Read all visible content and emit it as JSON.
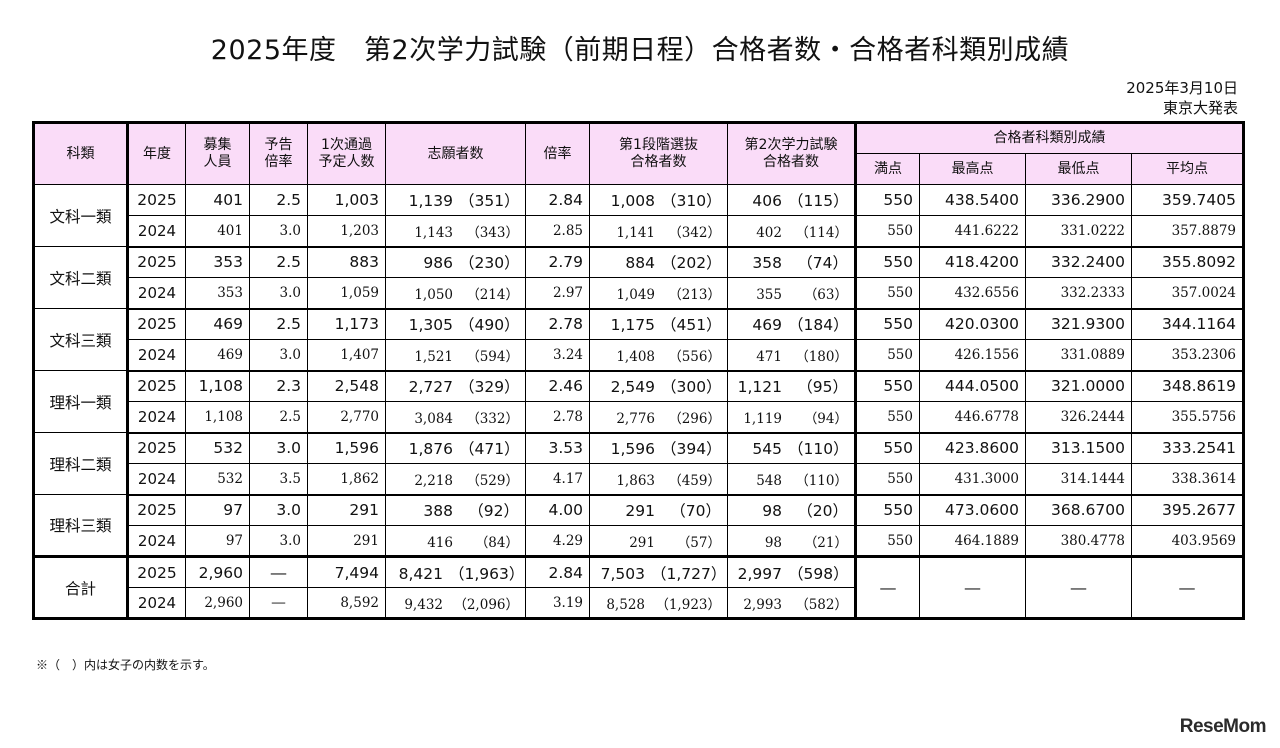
{
  "title": "2025年度　第2次学力試験（前期日程）合格者数・合格者科類別成績",
  "date": "2025年3月10日",
  "publisher": "東京大発表",
  "headers": {
    "category": "科類",
    "year": "年度",
    "recruit": "募集\n人員",
    "forecast_ratio": "予告\n倍率",
    "first_pass_plan": "1次通過\n予定人数",
    "applicants": "志願者数",
    "ratio": "倍率",
    "stage1_pass": "第1段階選抜\n合格者数",
    "stage2_pass": "第2次学力試験\n合格者数",
    "score_group": "合格者科類別成績",
    "full": "満点",
    "max": "最高点",
    "min": "最低点",
    "avg": "平均点"
  },
  "groups": [
    {
      "category": "文科一類",
      "rows": [
        {
          "year": "2025",
          "recruit": "401",
          "forecast": "2.5",
          "plan": "1,003",
          "app": "1,139",
          "app_f": "（351）",
          "ratio": "2.84",
          "s1": "1,008",
          "s1_f": "（310）",
          "s2": "406",
          "s2_f": "（115）",
          "full": "550",
          "max": "438.5400",
          "min": "336.2900",
          "avg": "359.7405"
        },
        {
          "year": "2024",
          "recruit": "401",
          "forecast": "3.0",
          "plan": "1,203",
          "app": "1,143",
          "app_f": "（343）",
          "ratio": "2.85",
          "s1": "1,141",
          "s1_f": "（342）",
          "s2": "402",
          "s2_f": "（114）",
          "full": "550",
          "max": "441.6222",
          "min": "331.0222",
          "avg": "357.8879"
        }
      ]
    },
    {
      "category": "文科二類",
      "rows": [
        {
          "year": "2025",
          "recruit": "353",
          "forecast": "2.5",
          "plan": "883",
          "app": "986",
          "app_f": "（230）",
          "ratio": "2.79",
          "s1": "884",
          "s1_f": "（202）",
          "s2": "358",
          "s2_f": "（74）",
          "full": "550",
          "max": "418.4200",
          "min": "332.2400",
          "avg": "355.8092"
        },
        {
          "year": "2024",
          "recruit": "353",
          "forecast": "3.0",
          "plan": "1,059",
          "app": "1,050",
          "app_f": "（214）",
          "ratio": "2.97",
          "s1": "1,049",
          "s1_f": "（213）",
          "s2": "355",
          "s2_f": "（63）",
          "full": "550",
          "max": "432.6556",
          "min": "332.2333",
          "avg": "357.0024"
        }
      ]
    },
    {
      "category": "文科三類",
      "rows": [
        {
          "year": "2025",
          "recruit": "469",
          "forecast": "2.5",
          "plan": "1,173",
          "app": "1,305",
          "app_f": "（490）",
          "ratio": "2.78",
          "s1": "1,175",
          "s1_f": "（451）",
          "s2": "469",
          "s2_f": "（184）",
          "full": "550",
          "max": "420.0300",
          "min": "321.9300",
          "avg": "344.1164"
        },
        {
          "year": "2024",
          "recruit": "469",
          "forecast": "3.0",
          "plan": "1,407",
          "app": "1,521",
          "app_f": "（594）",
          "ratio": "3.24",
          "s1": "1,408",
          "s1_f": "（556）",
          "s2": "471",
          "s2_f": "（180）",
          "full": "550",
          "max": "426.1556",
          "min": "331.0889",
          "avg": "353.2306"
        }
      ]
    },
    {
      "category": "理科一類",
      "rows": [
        {
          "year": "2025",
          "recruit": "1,108",
          "forecast": "2.3",
          "plan": "2,548",
          "app": "2,727",
          "app_f": "（329）",
          "ratio": "2.46",
          "s1": "2,549",
          "s1_f": "（300）",
          "s2": "1,121",
          "s2_f": "（95）",
          "full": "550",
          "max": "444.0500",
          "min": "321.0000",
          "avg": "348.8619"
        },
        {
          "year": "2024",
          "recruit": "1,108",
          "forecast": "2.5",
          "plan": "2,770",
          "app": "3,084",
          "app_f": "（332）",
          "ratio": "2.78",
          "s1": "2,776",
          "s1_f": "（296）",
          "s2": "1,119",
          "s2_f": "（94）",
          "full": "550",
          "max": "446.6778",
          "min": "326.2444",
          "avg": "355.5756"
        }
      ]
    },
    {
      "category": "理科二類",
      "rows": [
        {
          "year": "2025",
          "recruit": "532",
          "forecast": "3.0",
          "plan": "1,596",
          "app": "1,876",
          "app_f": "（471）",
          "ratio": "3.53",
          "s1": "1,596",
          "s1_f": "（394）",
          "s2": "545",
          "s2_f": "（110）",
          "full": "550",
          "max": "423.8600",
          "min": "313.1500",
          "avg": "333.2541"
        },
        {
          "year": "2024",
          "recruit": "532",
          "forecast": "3.5",
          "plan": "1,862",
          "app": "2,218",
          "app_f": "（529）",
          "ratio": "4.17",
          "s1": "1,863",
          "s1_f": "（459）",
          "s2": "548",
          "s2_f": "（110）",
          "full": "550",
          "max": "431.3000",
          "min": "314.1444",
          "avg": "338.3614"
        }
      ]
    },
    {
      "category": "理科三類",
      "rows": [
        {
          "year": "2025",
          "recruit": "97",
          "forecast": "3.0",
          "plan": "291",
          "app": "388",
          "app_f": "（92）",
          "ratio": "4.00",
          "s1": "291",
          "s1_f": "（70）",
          "s2": "98",
          "s2_f": "（20）",
          "full": "550",
          "max": "473.0600",
          "min": "368.6700",
          "avg": "395.2677"
        },
        {
          "year": "2024",
          "recruit": "97",
          "forecast": "3.0",
          "plan": "291",
          "app": "416",
          "app_f": "（84）",
          "ratio": "4.29",
          "s1": "291",
          "s1_f": "（57）",
          "s2": "98",
          "s2_f": "（21）",
          "full": "550",
          "max": "464.1889",
          "min": "380.4778",
          "avg": "403.9569"
        }
      ]
    }
  ],
  "total": {
    "category": "合計",
    "dash": "―",
    "rows": [
      {
        "year": "2025",
        "recruit": "2,960",
        "forecast": "―",
        "plan": "7,494",
        "app": "8,421",
        "app_f": "（1,963）",
        "ratio": "2.84",
        "s1": "7,503",
        "s1_f": "（1,727）",
        "s2": "2,997",
        "s2_f": "（598）"
      },
      {
        "year": "2024",
        "recruit": "2,960",
        "forecast": "―",
        "plan": "8,592",
        "app": "9,432",
        "app_f": "（2,096）",
        "ratio": "3.19",
        "s1": "8,528",
        "s1_f": "（1,923）",
        "s2": "2,993",
        "s2_f": "（582）"
      }
    ]
  },
  "note": "※（　）内は女子の内数を示す。",
  "logo": "ReseMom"
}
